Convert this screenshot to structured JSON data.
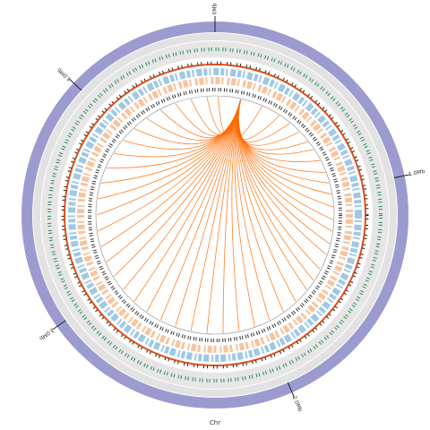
{
  "chart_data": {
    "type": "circos",
    "label": "Chr",
    "xlim": [
      0,
      4.6
    ],
    "xticks": [
      {
        "value": 0,
        "label": "0Mb"
      },
      {
        "value": 1,
        "label": "1.0Mb"
      },
      {
        "value": 2,
        "label": "2.0Mb"
      },
      {
        "value": 3,
        "label": "3.0Mb"
      },
      {
        "value": 4,
        "label": "4.0Mb"
      }
    ],
    "link_color": "#ff6a00",
    "links": {
      "source": 0.16,
      "targets": [
        0.02,
        0.3,
        0.42,
        0.5,
        0.58,
        0.66,
        0.72,
        0.8,
        0.88,
        0.95,
        1.02,
        1.1,
        1.18,
        1.25,
        1.33,
        1.4,
        1.5,
        1.58,
        1.65,
        1.75,
        1.85,
        1.95,
        2.05,
        2.15,
        2.25,
        2.35,
        2.45,
        2.55,
        2.65,
        2.75,
        2.85,
        2.95,
        3.05,
        3.15,
        3.25,
        3.35,
        3.45,
        3.55,
        3.65,
        3.75,
        3.85,
        3.95,
        4.05,
        4.15,
        4.25,
        4.35,
        4.45,
        4.55
      ]
    }
  }
}
